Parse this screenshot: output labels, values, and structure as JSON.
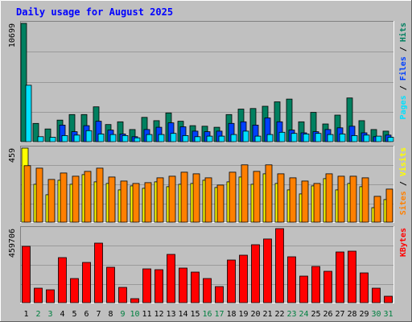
{
  "chart_data": {
    "type": "bar",
    "title": "Daily usage for August 2025",
    "categories": [
      "1",
      "2",
      "3",
      "4",
      "5",
      "6",
      "7",
      "8",
      "9",
      "10",
      "11",
      "12",
      "13",
      "14",
      "15",
      "16",
      "17",
      "18",
      "19",
      "20",
      "21",
      "22",
      "23",
      "24",
      "25",
      "26",
      "27",
      "28",
      "29",
      "30",
      "31"
    ],
    "weekend_days": [
      "2",
      "3",
      "9",
      "10",
      "16",
      "17",
      "23",
      "24",
      "30",
      "31"
    ],
    "panels": [
      {
        "id": "pages-files-hits",
        "ymax_label": "10699",
        "ylim": [
          0,
          10699
        ],
        "legend": [
          {
            "name": "Pages",
            "color": "#00e0ff"
          },
          {
            "name": "Files",
            "color": "#0040ff"
          },
          {
            "name": "Hits",
            "color": "#008060"
          }
        ],
        "legend_separator": " / ",
        "series": [
          {
            "name": "Hits",
            "color": "#008060",
            "values": [
              10699,
              1650,
              1150,
              1950,
              2450,
              2450,
              3150,
              1550,
              1800,
              1100,
              2200,
              1900,
              2600,
              1850,
              1450,
              1400,
              1300,
              2450,
              2950,
              3000,
              3200,
              3600,
              3850,
              1800,
              2650,
              1600,
              2400,
              3950,
              1900,
              1100,
              950
            ]
          },
          {
            "name": "Files",
            "color": "#0040ff",
            "values": [
              0,
              0,
              0,
              1500,
              900,
              1450,
              1850,
              1050,
              700,
              450,
              1100,
              1300,
              1700,
              1350,
              950,
              900,
              950,
              1650,
              1800,
              1500,
              2150,
              1800,
              1050,
              800,
              900,
              1100,
              1250,
              1400,
              800,
              450,
              600
            ]
          },
          {
            "name": "Pages",
            "color": "#00e0ff",
            "values": [
              5100,
              450,
              400,
              550,
              600,
              1000,
              700,
              650,
              550,
              350,
              650,
              650,
              750,
              550,
              450,
              500,
              500,
              650,
              950,
              500,
              650,
              850,
              750,
              700,
              750,
              650,
              700,
              550,
              600,
              500,
              400
            ]
          }
        ]
      },
      {
        "id": "sites-visits",
        "ymax_label": "459",
        "ylim": [
          0,
          459
        ],
        "legend": [
          {
            "name": "Sites",
            "color": "#ff8000"
          },
          {
            "name": "Visits",
            "color": "#ffff00"
          }
        ],
        "legend_separator": " / ",
        "series": [
          {
            "name": "Visits",
            "color": "#ffff00",
            "values": [
              459,
              235,
              170,
              260,
              235,
              295,
              250,
              240,
              200,
              225,
              210,
              250,
              220,
              235,
              240,
              260,
              215,
              250,
              280,
              235,
              300,
              240,
              200,
              175,
              225,
              270,
              200,
              240,
              220,
              90,
              140
            ]
          },
          {
            "name": "Sites",
            "color": "#ff8000",
            "values": [
              350,
              335,
              265,
              305,
              285,
              315,
              335,
              280,
              255,
              240,
              245,
              275,
              285,
              310,
              300,
              275,
              230,
              310,
              355,
              315,
              355,
              300,
              275,
              255,
              240,
              300,
              285,
              285,
              275,
              160,
              205
            ]
          }
        ]
      },
      {
        "id": "kbytes",
        "ymax_label": "459706",
        "ylim": [
          0,
          459706
        ],
        "legend": [
          {
            "name": "KBytes",
            "color": "#ff0000"
          }
        ],
        "legend_separator": "",
        "series": [
          {
            "name": "KBytes",
            "color": "#ff0000",
            "values": [
              350000,
              90000,
              80000,
              280000,
              150000,
              250000,
              370000,
              220000,
              95000,
              25000,
              210000,
              205000,
              300000,
              215000,
              190000,
              150000,
              100000,
              265000,
              295000,
              360000,
              395000,
              459706,
              285000,
              165000,
              225000,
              195000,
              315000,
              320000,
              185000,
              90000,
              40000
            ]
          }
        ]
      }
    ]
  },
  "colors": {
    "background": "#c0c0c0",
    "title": "#0000ff",
    "axis_text": "#000000",
    "weekday_label": "#000000",
    "weekend_label": "#008040",
    "bar_outline": "#000000"
  }
}
